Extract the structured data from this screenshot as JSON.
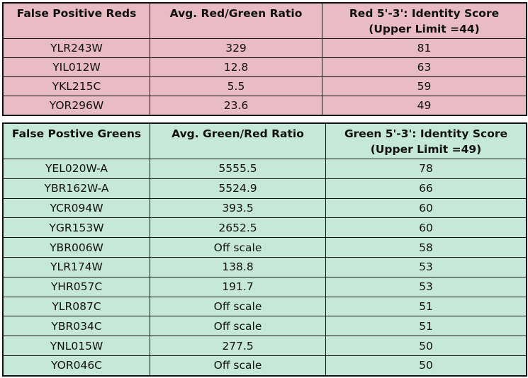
{
  "red_table": {
    "headers": [
      "False Positive Reds",
      "Avg. Red/Green Ratio",
      "Red 5'-3': Identity Score",
      "(Upper Limit =44)"
    ],
    "rows": [
      [
        "YLR243W",
        "329",
        "81"
      ],
      [
        "YIL012W",
        "12.8",
        "63"
      ],
      [
        "YKL215C",
        "5.5",
        "59"
      ],
      [
        "YOR296W",
        "23.6",
        "49"
      ]
    ]
  },
  "green_table": {
    "headers": [
      "False Postive Greens",
      "Avg. Green/Red Ratio",
      "Green 5'-3': Identity Score",
      "(Upper Limit =49)"
    ],
    "rows": [
      [
        "YEL020W-A",
        "5555.5",
        "78"
      ],
      [
        "YBR162W-A",
        "5524.9",
        "66"
      ],
      [
        "YCR094W",
        "393.5",
        "60"
      ],
      [
        "YGR153W",
        "2652.5",
        "60"
      ],
      [
        "YBR006W",
        "Off scale",
        "58"
      ],
      [
        "YLR174W",
        "138.8",
        "53"
      ],
      [
        "YHR057C",
        "191.7",
        "53"
      ],
      [
        "YLR087C",
        "Off scale",
        "51"
      ],
      [
        "YBR034C",
        "Off scale",
        "51"
      ],
      [
        "YNL015W",
        "277.5",
        "50"
      ],
      [
        "YOR046C",
        "Off scale",
        "50"
      ]
    ]
  },
  "colors": {
    "red_table_bg": "#e8bcc2",
    "green_table_bg": "#c6e8d8"
  }
}
